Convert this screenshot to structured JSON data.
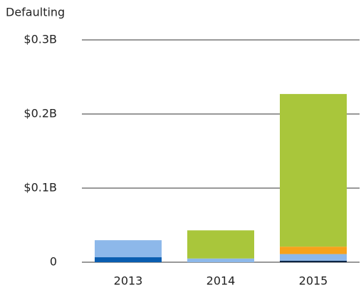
{
  "chart_data": {
    "type": "stacked_bar",
    "title": "Defaulting",
    "categories": [
      "2013",
      "2014",
      "2015"
    ],
    "series": [
      {
        "color": "#0b2545",
        "values": [
          0,
          0,
          0.002
        ]
      },
      {
        "color": "#0a5db0",
        "values": [
          0.0067,
          0,
          0
        ]
      },
      {
        "color": "#8db8ea",
        "values": [
          0.023,
          0.005,
          0.009
        ]
      },
      {
        "color": "#f7a21b",
        "values": [
          0,
          0,
          0.01
        ]
      },
      {
        "color": "#a9c63b",
        "values": [
          0,
          0.038,
          0.206
        ]
      }
    ],
    "ylim": [
      0,
      0.3
    ],
    "yticks": [
      0,
      {
        "value": 0.1,
        "label": "$0.1B"
      },
      {
        "value": 0.2,
        "label": "$0.2B"
      },
      {
        "value": 0.3,
        "label": "$0.3B"
      }
    ],
    "grid": true
  }
}
